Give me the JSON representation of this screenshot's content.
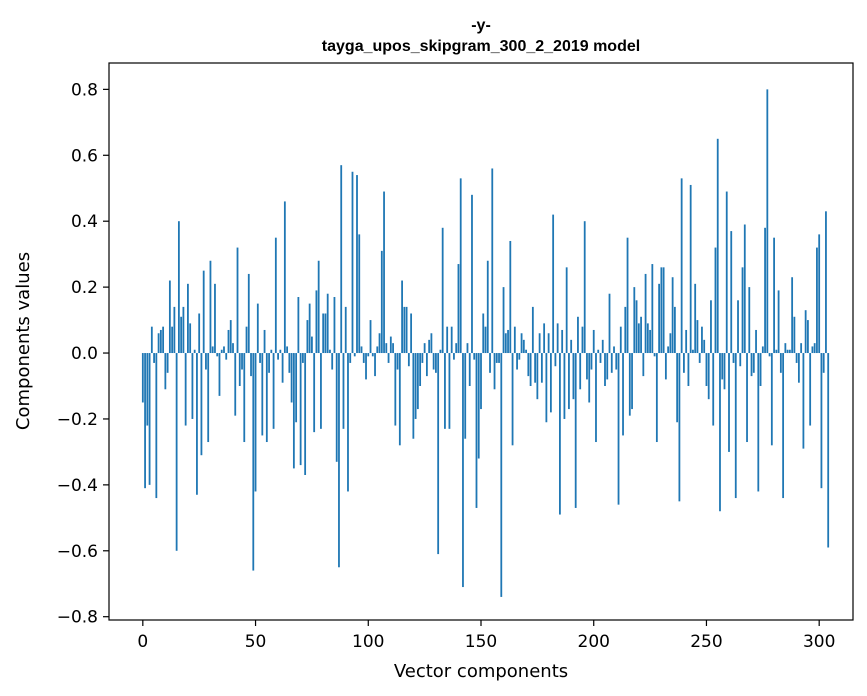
{
  "chart_data": {
    "type": "bar",
    "title_lines": [
      "-y-",
      "tayga_upos_skipgram_300_2_2019 model"
    ],
    "xlabel": "Vector components",
    "ylabel": "Components values",
    "xlim": [
      -15,
      315
    ],
    "ylim": [
      -0.81,
      0.88
    ],
    "xticks": [
      0,
      50,
      100,
      150,
      200,
      250,
      300
    ],
    "yticks": [
      -0.8,
      -0.6,
      -0.4,
      -0.2,
      0.0,
      0.2,
      0.4,
      0.6,
      0.8
    ],
    "ytick_labels": [
      "−0.8",
      "−0.6",
      "−0.4",
      "−0.2",
      "0.0",
      "0.2",
      "0.4",
      "0.6",
      "0.8"
    ],
    "xtick_labels": [
      "0",
      "50",
      "100",
      "150",
      "200",
      "250",
      "300"
    ],
    "bar_color": "#1f77b4",
    "values": [
      -0.15,
      -0.41,
      -0.22,
      -0.4,
      0.08,
      -0.03,
      -0.44,
      0.06,
      0.07,
      0.08,
      -0.11,
      -0.06,
      0.22,
      0.08,
      0.14,
      -0.6,
      0.4,
      0.11,
      0.14,
      -0.22,
      0.21,
      0.09,
      -0.2,
      0.01,
      -0.43,
      0.12,
      -0.31,
      0.25,
      -0.05,
      -0.27,
      0.28,
      0.02,
      0.21,
      -0.01,
      -0.13,
      0.01,
      0.02,
      -0.02,
      0.07,
      0.1,
      0.03,
      -0.19,
      0.32,
      -0.1,
      -0.05,
      -0.27,
      0.08,
      0.24,
      -0.07,
      -0.66,
      -0.42,
      0.15,
      -0.03,
      -0.25,
      0.07,
      -0.27,
      -0.06,
      0.01,
      -0.23,
      0.35,
      -0.02,
      0.01,
      -0.09,
      0.46,
      0.02,
      -0.06,
      -0.15,
      -0.35,
      -0.21,
      0.17,
      -0.34,
      -0.03,
      -0.37,
      0.1,
      0.15,
      0.05,
      -0.24,
      0.19,
      0.28,
      -0.23,
      0.12,
      0.12,
      0.18,
      0.01,
      -0.05,
      0.17,
      -0.33,
      -0.65,
      0.57,
      -0.23,
      0.14,
      -0.42,
      -0.03,
      0.55,
      -0.01,
      0.54,
      0.36,
      0.02,
      -0.03,
      -0.08,
      -0.01,
      0.1,
      -0.01,
      -0.07,
      0.02,
      0.06,
      0.31,
      0.49,
      0.03,
      -0.03,
      0.05,
      0.03,
      -0.22,
      -0.05,
      -0.28,
      0.22,
      0.14,
      0.14,
      -0.04,
      0.12,
      -0.26,
      -0.2,
      -0.17,
      -0.1,
      -0.03,
      0.03,
      -0.07,
      0.04,
      0.06,
      -0.05,
      -0.06,
      -0.61,
      0.01,
      0.38,
      -0.23,
      0.08,
      -0.23,
      0.08,
      -0.02,
      0.03,
      0.27,
      0.53,
      -0.71,
      -0.26,
      0.03,
      -0.1,
      0.48,
      -0.02,
      -0.47,
      -0.32,
      -0.17,
      0.12,
      0.08,
      0.28,
      -0.06,
      0.56,
      -0.11,
      -0.03,
      -0.03,
      -0.74,
      0.2,
      0.06,
      0.07,
      0.34,
      -0.28,
      0.08,
      -0.05,
      -0.02,
      0.06,
      0.04,
      0.01,
      -0.07,
      -0.1,
      0.14,
      -0.09,
      -0.14,
      0.06,
      -0.09,
      0.09,
      -0.21,
      0.06,
      -0.18,
      0.42,
      -0.04,
      0.09,
      -0.49,
      0.07,
      -0.2,
      0.26,
      -0.17,
      0.04,
      -0.14,
      -0.47,
      0.11,
      -0.11,
      0.08,
      0.4,
      -0.08,
      -0.15,
      -0.05,
      0.07,
      -0.27,
      0.01,
      -0.03,
      0.04,
      -0.1,
      -0.08,
      0.18,
      -0.06,
      0.02,
      -0.05,
      -0.46,
      0.08,
      -0.25,
      0.14,
      0.35,
      -0.19,
      -0.17,
      0.2,
      0.16,
      0.09,
      0.11,
      -0.07,
      0.24,
      0.09,
      0.07,
      0.27,
      -0.01,
      -0.27,
      0.21,
      0.26,
      0.26,
      -0.08,
      0.02,
      0.06,
      0.23,
      0.14,
      -0.21,
      -0.45,
      0.53,
      -0.06,
      0.07,
      -0.1,
      0.51,
      0.01,
      0.21,
      0.1,
      -0.03,
      0.08,
      0.04,
      -0.1,
      -0.14,
      0.16,
      -0.22,
      0.32,
      0.65,
      -0.48,
      -0.08,
      -0.11,
      0.49,
      -0.3,
      0.37,
      -0.03,
      -0.44,
      0.16,
      -0.04,
      0.26,
      0.39,
      -0.27,
      0.2,
      -0.07,
      -0.06,
      0.07,
      -0.42,
      -0.1,
      0.02,
      0.38,
      0.8,
      -0.01,
      -0.28,
      0.35,
      0.01,
      0.19,
      -0.06,
      -0.44,
      0.03,
      0.01,
      0.01,
      0.23,
      0.11,
      -0.03,
      -0.09,
      0.03,
      -0.29,
      0.13,
      0.1,
      -0.22,
      0.02,
      0.03,
      0.32,
      0.36,
      -0.41,
      -0.06,
      0.43,
      -0.59
    ]
  }
}
